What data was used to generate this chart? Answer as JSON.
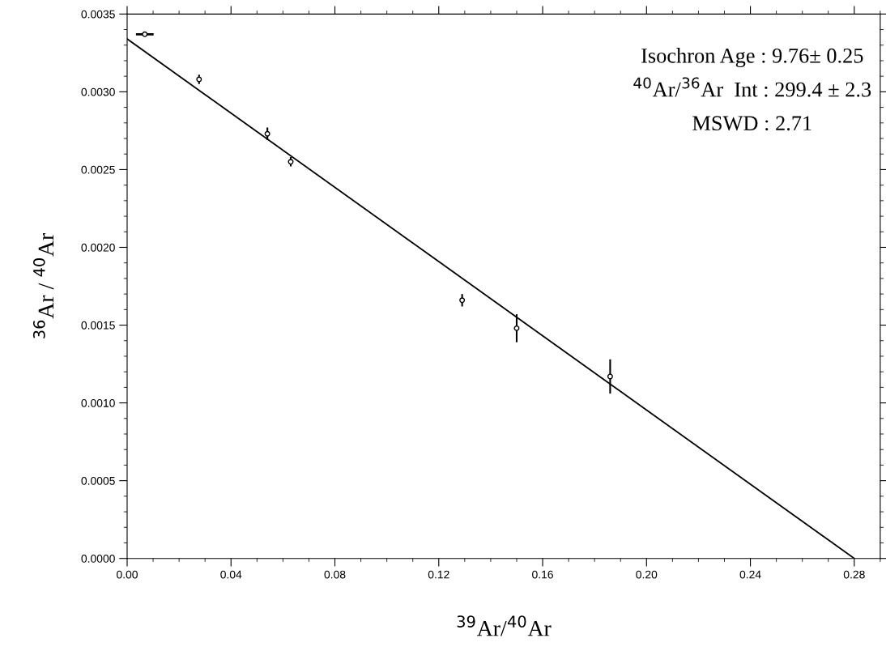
{
  "chart_data": {
    "type": "scatter",
    "xlabel": "$^{39}$Ar/$^{40}$Ar",
    "ylabel": "$^{36}$Ar / $^{40}$Ar",
    "annotations": [
      "Isochron Age : 9.76± 0.25",
      "$^{40}$Ar/$^{36}$Ar  Int : 299.4 ± 2.3",
      "MSWD : 2.71"
    ],
    "series": [
      {
        "color": "#000000",
        "x": [
          0.0068,
          0.0277,
          0.054,
          0.063,
          0.129,
          0.15,
          0.186
        ],
        "values": [
          0.00337,
          0.00308,
          0.00273,
          0.00255,
          0.00166,
          0.00148,
          0.00117
        ],
        "errors": [
          null,
          3e-05,
          4e-05,
          3e-05,
          4e-05,
          9e-05,
          0.00011
        ],
        "xerrors": [
          0.0034,
          null,
          null,
          null,
          null,
          null,
          null
        ],
        "marker": "circle"
      },
      {
        "type": "line",
        "color": "#000000",
        "x": [
          0,
          0.28
        ],
        "values": [
          0.00334,
          0
        ],
        "line_style": "solid"
      }
    ],
    "xlim": [
      0,
      0.29
    ],
    "ylim": [
      0,
      0.0035
    ],
    "xticks": [
      {
        "value": 0,
        "label": "0.00"
      },
      0.04,
      0.08,
      0.12,
      0.16,
      {
        "value": 0.2,
        "label": "0.20"
      },
      0.24,
      0.28
    ],
    "yticks": [
      {
        "value": 0,
        "label": "0.0000"
      },
      0.0005,
      {
        "value": 0.001,
        "label": "0.0010"
      },
      0.0015,
      {
        "value": 0.002,
        "label": "0.0020"
      },
      0.0025,
      {
        "value": 0.003,
        "label": "0.0030"
      },
      0.0035
    ],
    "grid": false,
    "legend": false
  }
}
